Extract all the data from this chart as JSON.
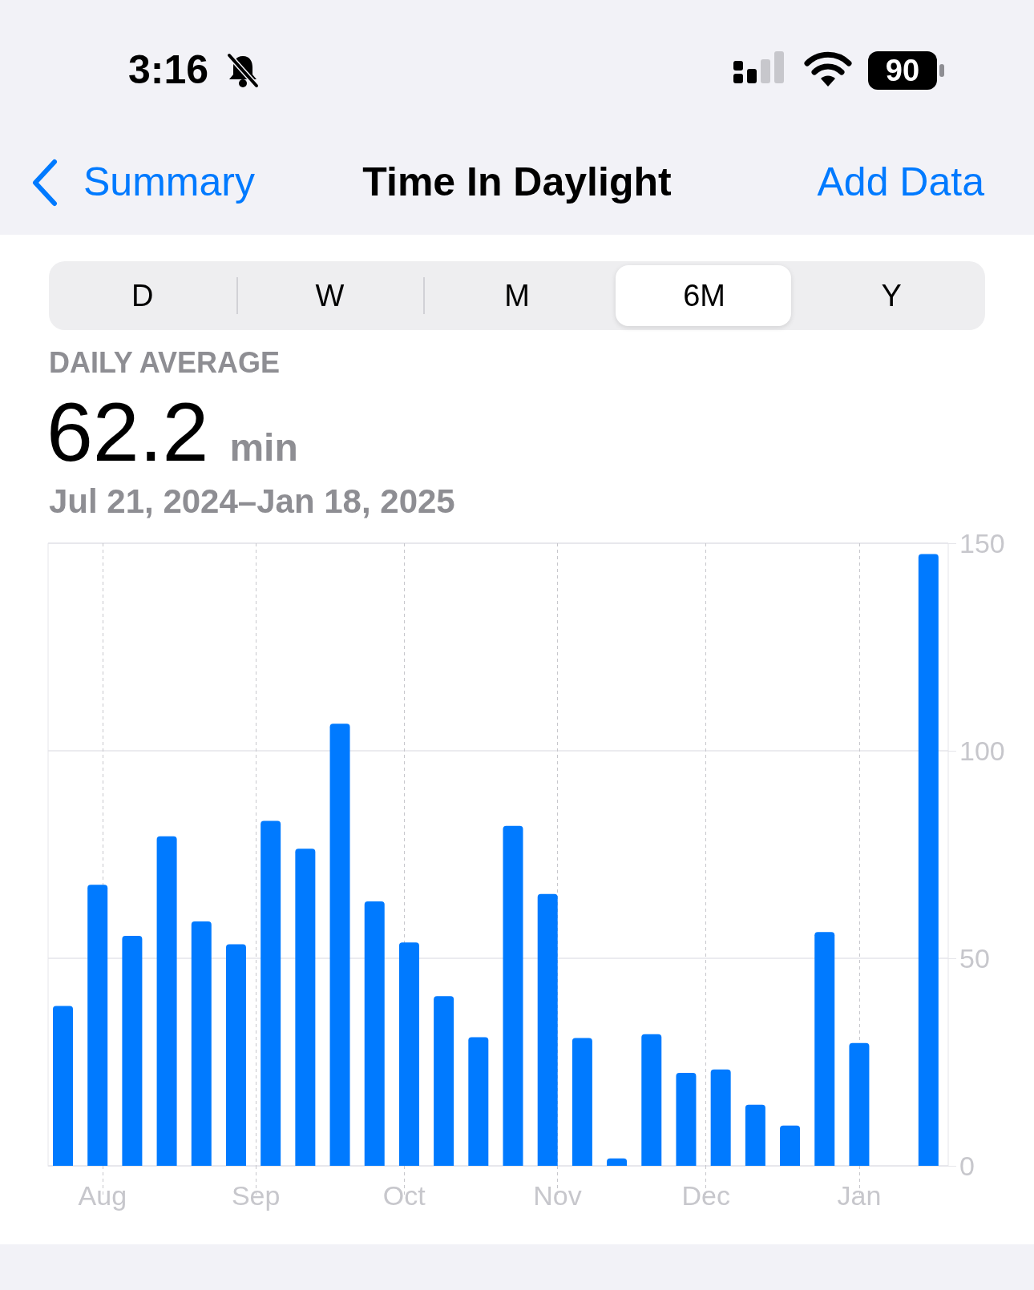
{
  "chart_data": {
    "type": "bar",
    "title": "Time In Daylight",
    "annotations": [
      "3:16",
      "90",
      "Summary",
      "Add Data",
      "D",
      "W",
      "M",
      "6M",
      "Y",
      "DAILY AVERAGE",
      "62.2",
      "min",
      "Jul 21, 2024–Jan 18, 2025"
    ],
    "x": [
      "2024-07-24",
      "2024-07-31",
      "2024-08-07",
      "2024-08-14",
      "2024-08-21",
      "2024-08-28",
      "2024-09-04",
      "2024-09-11",
      "2024-09-18",
      "2024-09-25",
      "2024-10-02",
      "2024-10-09",
      "2024-10-16",
      "2024-10-23",
      "2024-10-30",
      "2024-11-06",
      "2024-11-13",
      "2024-11-20",
      "2024-11-27",
      "2024-12-04",
      "2024-12-11",
      "2024-12-18",
      "2024-12-25",
      "2025-01-01",
      "2025-01-08",
      "2025-01-15"
    ],
    "values": [
      38.5,
      67.7,
      55.4,
      79.4,
      58.9,
      53.4,
      83.1,
      76.4,
      106.5,
      63.7,
      53.8,
      40.9,
      31,
      81.9,
      65.5,
      30.8,
      1.8,
      31.7,
      22.4,
      23.2,
      14.7,
      9.7,
      56.3,
      29.6,
      null,
      147.4
    ],
    "color": "#007aff",
    "xlim": [
      "2024-07-21",
      "2025-01-19"
    ],
    "xticks": [
      {
        "value": "2024-08-01",
        "label": "Aug"
      },
      {
        "value": "2024-09-01",
        "label": "Sep"
      },
      {
        "value": "2024-10-01",
        "label": "Oct"
      },
      {
        "value": "2024-11-01",
        "label": "Nov"
      },
      {
        "value": "2024-12-01",
        "label": "Dec"
      },
      {
        "value": "2025-01-01",
        "label": "Jan"
      }
    ],
    "ylim": [
      0,
      150
    ],
    "yticks": [
      0,
      50,
      100,
      150
    ],
    "grid": true
  }
}
